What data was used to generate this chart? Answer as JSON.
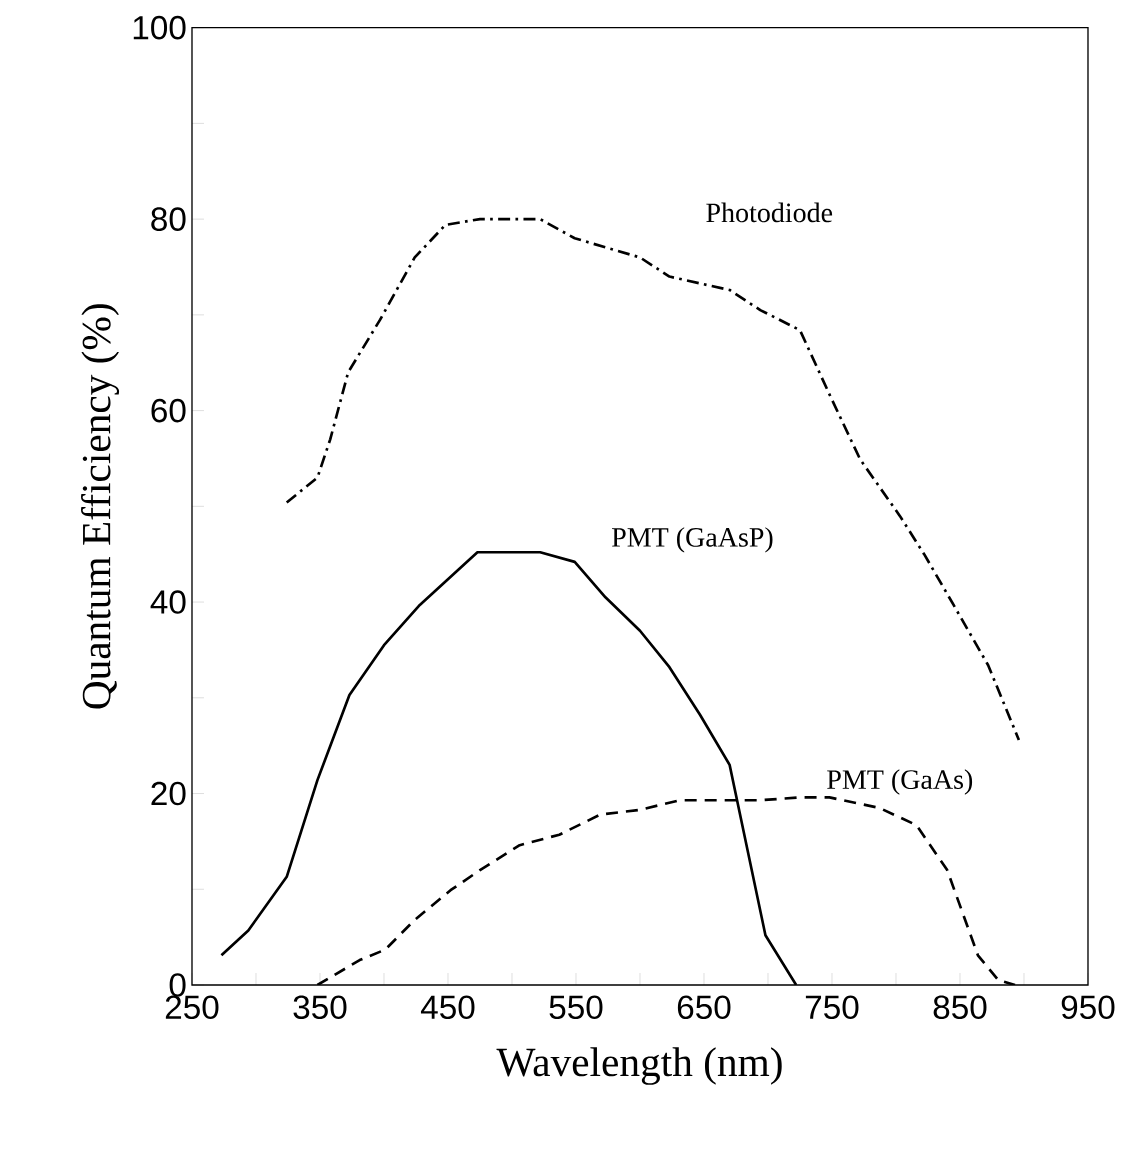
{
  "chart_data": {
    "type": "line",
    "xlabel": "Wavelength (nm)",
    "ylabel": "Quantum Efficiency (%)",
    "xlim": [
      250,
      950
    ],
    "ylim": [
      0,
      100
    ],
    "xticks": [
      250,
      {
        "value": 300,
        "label": null
      },
      350,
      {
        "value": 400,
        "label": null
      },
      450,
      {
        "value": 500,
        "label": null
      },
      550,
      {
        "value": 600,
        "label": null
      },
      650,
      {
        "value": 700,
        "label": null
      },
      750,
      {
        "value": 800,
        "label": null
      },
      850,
      {
        "value": 900,
        "label": null
      },
      950
    ],
    "yticks": [
      0,
      {
        "value": 10,
        "label": null
      },
      20,
      {
        "value": 30,
        "label": null
      },
      40,
      {
        "value": 50,
        "label": null
      },
      60,
      {
        "value": 70,
        "label": null
      },
      80,
      {
        "value": 90,
        "label": null
      },
      100
    ],
    "grid": false,
    "marker": "none",
    "series": [
      {
        "name": "Photodiode",
        "color": "#000000",
        "line_style": "dashdot",
        "x": [
          324,
          348,
          358,
          372,
          397,
          424,
          448,
          475,
          522,
          549,
          600,
          623,
          670,
          694,
          725,
          748,
          772,
          803,
          822,
          845,
          872,
          896
        ],
        "values": [
          50.4,
          53,
          57,
          64,
          69.5,
          76,
          79.4,
          80,
          80,
          78,
          76,
          74,
          72.6,
          70.5,
          68.4,
          61.7,
          54.9,
          49,
          45,
          39.7,
          33.4,
          25.6
        ]
      },
      {
        "name": "PMT (GaAsP)",
        "color": "#000000",
        "line_style": "solid",
        "x": [
          273,
          294,
          324,
          348,
          373,
          400,
          428,
          473,
          522,
          549,
          573,
          600,
          623,
          647,
          670,
          698,
          722
        ],
        "values": [
          3.1,
          5.7,
          11.3,
          21.4,
          30.3,
          35.5,
          39.7,
          45.2,
          45.2,
          44.2,
          40.5,
          37,
          33.2,
          28.2,
          23,
          5.2,
          0
        ]
      },
      {
        "name": "PMT (GaAs)",
        "color": "#000000",
        "line_style": "dashed",
        "x": [
          348,
          381,
          401,
          424,
          452,
          475,
          506,
          537,
          569,
          600,
          631,
          662,
          694,
          725,
          748,
          787,
          816,
          840,
          864,
          880,
          893
        ],
        "values": [
          0,
          2.6,
          3.7,
          6.8,
          9.9,
          12,
          14.6,
          15.7,
          17.8,
          18.3,
          19.3,
          19.3,
          19.3,
          19.6,
          19.6,
          18.5,
          16.7,
          12,
          3.1,
          0.5,
          0
        ]
      }
    ]
  }
}
